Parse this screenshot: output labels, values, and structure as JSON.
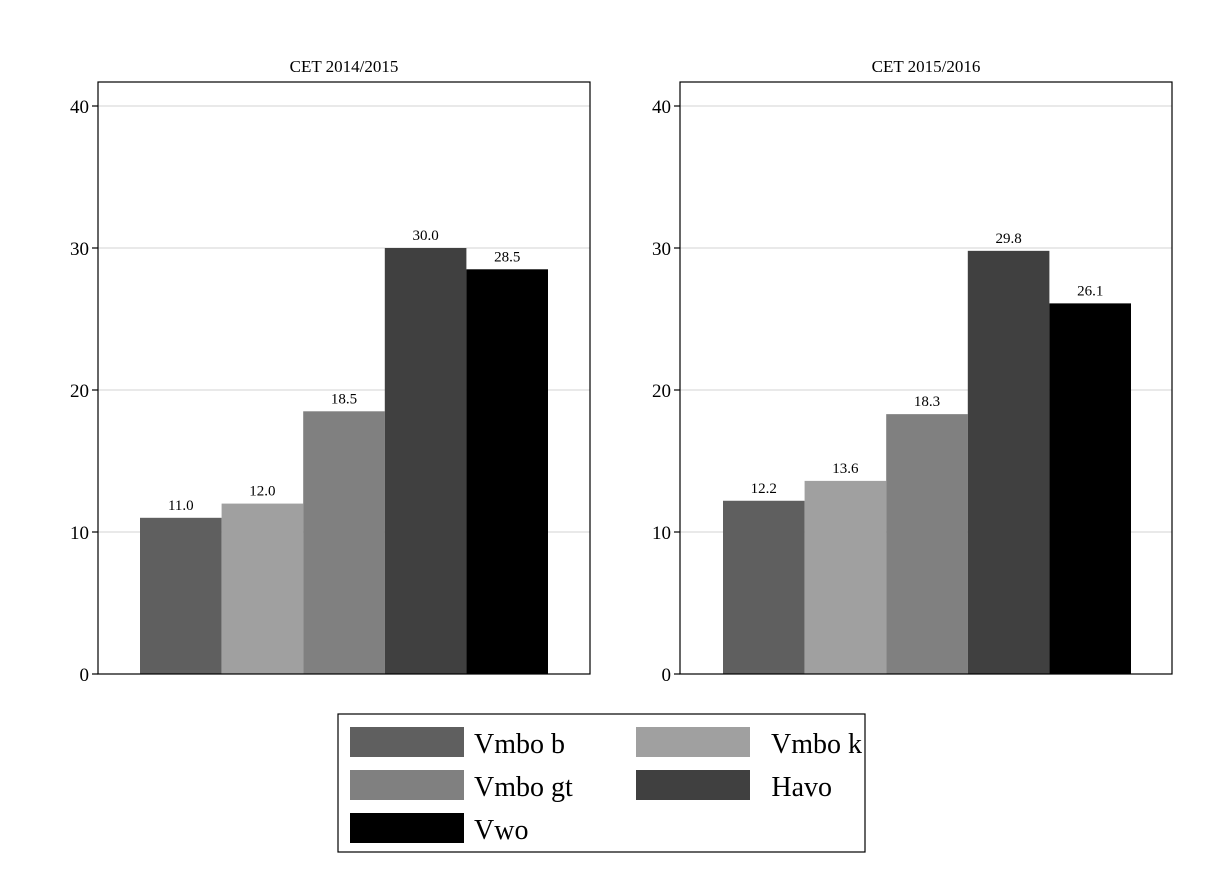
{
  "chart_data": [
    {
      "type": "bar",
      "title": "CET 2014/2015",
      "ylim": [
        0,
        40
      ],
      "yticks": [
        0,
        10,
        20,
        30,
        40
      ],
      "grid": true,
      "categories": [
        "Vmbo b",
        "Vmbo k",
        "Vmbo gt",
        "Havo",
        "Vwo"
      ],
      "values": [
        11.0,
        12.0,
        18.5,
        30.0,
        28.5
      ],
      "value_labels": [
        "11.0",
        "12.0",
        "18.5",
        "30.0",
        "28.5"
      ]
    },
    {
      "type": "bar",
      "title": "CET 2015/2016",
      "ylim": [
        0,
        40
      ],
      "yticks": [
        0,
        10,
        20,
        30,
        40
      ],
      "grid": true,
      "categories": [
        "Vmbo b",
        "Vmbo k",
        "Vmbo gt",
        "Havo",
        "Vwo"
      ],
      "values": [
        12.2,
        13.6,
        18.3,
        29.8,
        26.1
      ],
      "value_labels": [
        "12.2",
        "13.6",
        "18.3",
        "29.8",
        "26.1"
      ]
    }
  ],
  "legend": {
    "placement": "bottom",
    "items": [
      {
        "label": "Vmbo b",
        "color": "#5f5f5f"
      },
      {
        "label": "Vmbo k",
        "color": "#a0a0a0"
      },
      {
        "label": "Vmbo gt",
        "color": "#808080"
      },
      {
        "label": "Havo",
        "color": "#404040"
      },
      {
        "label": "Vwo",
        "color": "#000000"
      }
    ]
  }
}
